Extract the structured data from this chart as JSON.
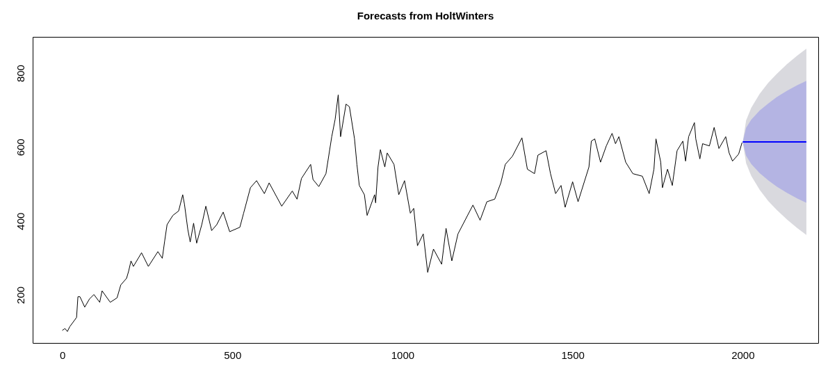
{
  "chart_data": {
    "type": "line",
    "title": "Forecasts from HoltWinters",
    "xlim": [
      -87,
      2222
    ],
    "ylim": [
      70,
      898
    ],
    "xticks": [
      0,
      500,
      1000,
      1500,
      2000
    ],
    "yticks": [
      200,
      400,
      600,
      800
    ],
    "grid": false,
    "line_style": "solid",
    "marker": "none",
    "series": [
      {
        "color": "#000000",
        "x": [
          0,
          8,
          15,
          22,
          42,
          46,
          52,
          66,
          80,
          93,
          110,
          117,
          141,
          161,
          172,
          189,
          195,
          202,
          209,
          233,
          253,
          281,
          294,
          301,
          308,
          325,
          342,
          354,
          359,
          369,
          376,
          386,
          395,
          410,
          422,
          439,
          454,
          473,
          492,
          522,
          533,
          553,
          571,
          594,
          608,
          645,
          676,
          690,
          703,
          730,
          737,
          754,
          775,
          792,
          802,
          811,
          818,
          834,
          844,
          859,
          866,
          873,
          888,
          896,
          918,
          921,
          928,
          935,
          948,
          955,
          975,
          989,
          1006,
          1023,
          1033,
          1044,
          1061,
          1074,
          1091,
          1115,
          1128,
          1145,
          1163,
          1207,
          1228,
          1248,
          1271,
          1289,
          1302,
          1323,
          1351,
          1367,
          1388,
          1398,
          1422,
          1435,
          1450,
          1466,
          1478,
          1500,
          1516,
          1548,
          1555,
          1565,
          1582,
          1599,
          1616,
          1626,
          1636,
          1656,
          1677,
          1705,
          1725,
          1739,
          1745,
          1759,
          1764,
          1779,
          1793,
          1807,
          1824,
          1832,
          1841,
          1858,
          1862,
          1874,
          1882,
          1902,
          1916,
          1930,
          1950,
          1960,
          1970,
          1988,
          1998
        ],
        "values": [
          104,
          109,
          101,
          114,
          139,
          195,
          195,
          167,
          189,
          201,
          180,
          211,
          180,
          192,
          227,
          245,
          264,
          292,
          277,
          314,
          277,
          317,
          299,
          346,
          390,
          415,
          427,
          471,
          446,
          377,
          343,
          394,
          340,
          390,
          440,
          374,
          390,
          424,
          371,
          383,
          421,
          490,
          509,
          474,
          503,
          440,
          481,
          459,
          515,
          553,
          512,
          493,
          528,
          628,
          675,
          741,
          628,
          716,
          709,
          622,
          553,
          496,
          471,
          415,
          471,
          449,
          546,
          593,
          546,
          584,
          553,
          471,
          509,
          421,
          434,
          333,
          365,
          261,
          324,
          283,
          380,
          292,
          365,
          443,
          402,
          452,
          459,
          503,
          553,
          575,
          625,
          540,
          528,
          578,
          590,
          528,
          474,
          496,
          437,
          506,
          452,
          546,
          616,
          622,
          559,
          603,
          637,
          609,
          628,
          559,
          528,
          521,
          474,
          540,
          622,
          559,
          490,
          540,
          496,
          590,
          616,
          562,
          628,
          666,
          622,
          568,
          609,
          603,
          653,
          596,
          628,
          584,
          562,
          581,
          612
        ]
      },
      {
        "color": "#0000ff",
        "x": [
          2000,
          2010,
          2025,
          2050,
          2075,
          2100,
          2130,
          2160,
          2187
        ],
        "values": [
          614,
          614,
          614,
          614,
          614,
          614,
          614,
          614,
          614
        ],
        "lower": [
          614,
          576,
          554,
          529,
          510,
          493,
          476,
          461,
          449
        ],
        "upper": [
          614,
          652,
          674,
          699,
          718,
          735,
          752,
          767,
          779
        ]
      },
      {
        "color": "#d9d9de",
        "x": [
          2000,
          2010,
          2025,
          2050,
          2075,
          2100,
          2130,
          2160,
          2187
        ],
        "values": [
          null,
          null,
          null,
          null,
          null,
          null,
          null,
          null,
          null
        ],
        "lower": [
          614,
          556,
          522,
          484,
          454,
          430,
          404,
          381,
          362
        ],
        "upper": [
          614,
          672,
          706,
          744,
          774,
          798,
          824,
          847,
          866
        ]
      }
    ]
  }
}
